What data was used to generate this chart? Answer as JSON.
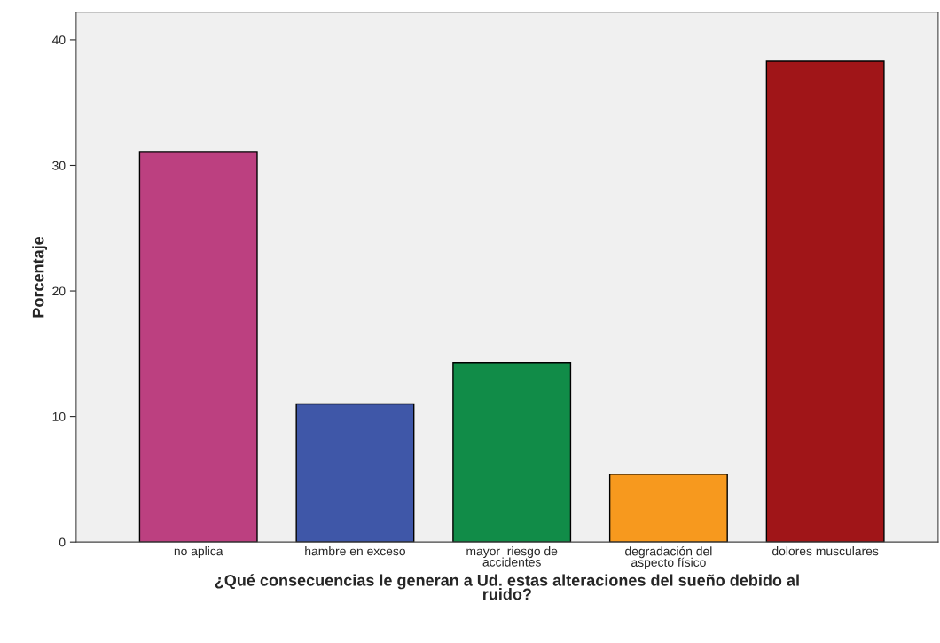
{
  "chart_data": {
    "type": "bar",
    "xlabel": "¿Qué consecuencias le generan a Ud. estas alteraciones del sueño debido al\nruido?",
    "ylabel": "Porcentaje",
    "categories": [
      "no aplica",
      "hambre en exceso",
      "mayor  riesgo de\naccidentes",
      "degradación del\naspecto físico",
      "dolores musculares"
    ],
    "values": [
      31.1,
      11.0,
      14.3,
      5.4,
      38.3
    ],
    "colors": [
      "#bc4080",
      "#3f57a8",
      "#118c48",
      "#f7991e",
      "#a01518"
    ],
    "ylim": [
      0,
      42.2
    ],
    "yticks": [
      0,
      10,
      20,
      30,
      40
    ],
    "grid": false,
    "legend": false
  }
}
